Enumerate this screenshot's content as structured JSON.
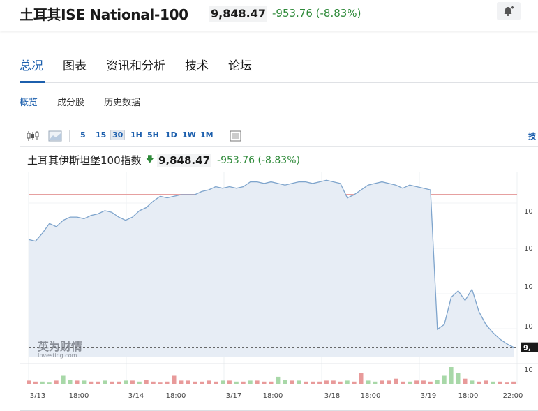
{
  "header": {
    "title": "土耳其ISE National-100",
    "price": "9,848.47",
    "change": "-953.76 (-8.83%)"
  },
  "tabs": [
    {
      "label": "总况",
      "active": true
    },
    {
      "label": "图表"
    },
    {
      "label": "资讯和分析"
    },
    {
      "label": "技术"
    },
    {
      "label": "论坛"
    }
  ],
  "subtabs": [
    {
      "label": "概览",
      "active": true
    },
    {
      "label": "成分股"
    },
    {
      "label": "历史数据"
    }
  ],
  "toolbar": {
    "intervals": [
      "5",
      "15",
      "30",
      "1H",
      "5H",
      "1D",
      "1W",
      "1M"
    ],
    "selected": "30",
    "right_label": "技"
  },
  "legend": {
    "name": "土耳其伊斯坦堡100指数",
    "price": "9,848.47",
    "change": "-953.76 (-8.83%)"
  },
  "watermark": {
    "cn": "英为财情",
    "en": "Investing.com"
  },
  "price_tag": "9,",
  "colors": {
    "accent": "#1c5fad",
    "up": "#2f8a3a",
    "line": "#7ea4cc",
    "area": "#e7edf5",
    "ref": "#e6a0a0"
  },
  "chart_data": {
    "type": "area",
    "x_labels": [
      "3/13",
      "18:00",
      "3/14",
      "18:00",
      "3/17",
      "18:00",
      "3/18",
      "18:00",
      "3/19",
      "18:00",
      "22:00"
    ],
    "y_tick_labels": [
      "10",
      "10",
      "10",
      "10",
      "10"
    ],
    "values": [
      10520,
      10510,
      10560,
      10620,
      10600,
      10640,
      10660,
      10660,
      10650,
      10670,
      10680,
      10700,
      10690,
      10660,
      10640,
      10660,
      10700,
      10720,
      10760,
      10790,
      10780,
      10790,
      10800,
      10800,
      10800,
      10820,
      10830,
      10850,
      10840,
      10850,
      10840,
      10850,
      10880,
      10880,
      10870,
      10880,
      10870,
      10860,
      10870,
      10880,
      10880,
      10870,
      10880,
      10890,
      10880,
      10870,
      10780,
      10800,
      10830,
      10860,
      10870,
      10880,
      10870,
      10860,
      10840,
      10860,
      10850,
      10840,
      10830,
      9960,
      9990,
      10160,
      10200,
      10140,
      10210,
      10070,
      9990,
      9940,
      9900,
      9870,
      9848
    ],
    "previous_close": 10802,
    "volume": [
      4,
      3,
      3,
      2,
      4,
      9,
      5,
      4,
      4,
      3,
      3,
      4,
      3,
      3,
      4,
      4,
      3,
      5,
      3,
      2,
      3,
      9,
      4,
      4,
      3,
      3,
      4,
      3,
      4,
      4,
      3,
      3,
      4,
      4,
      3,
      3,
      8,
      5,
      4,
      4,
      3,
      3,
      3,
      4,
      4,
      3,
      4,
      3,
      12,
      4,
      3,
      4,
      4,
      6,
      3,
      3,
      4,
      4,
      3,
      5,
      9,
      18,
      12,
      6,
      4,
      3,
      4,
      3,
      3,
      2,
      3
    ],
    "volume_up": [
      false,
      false,
      true,
      true,
      false,
      true,
      true,
      false,
      true,
      false,
      false,
      true,
      false,
      false,
      true,
      false,
      true,
      false,
      false,
      false,
      false,
      false,
      false,
      false,
      false,
      false,
      false,
      false,
      true,
      false,
      true,
      false,
      true,
      false,
      false,
      false,
      true,
      true,
      false,
      true,
      false,
      false,
      false,
      false,
      false,
      false,
      true,
      false,
      false,
      true,
      true,
      false,
      false,
      false,
      false,
      true,
      false,
      false,
      false,
      true,
      true,
      true,
      true,
      false,
      true,
      false,
      false,
      true,
      false,
      false,
      false
    ]
  }
}
